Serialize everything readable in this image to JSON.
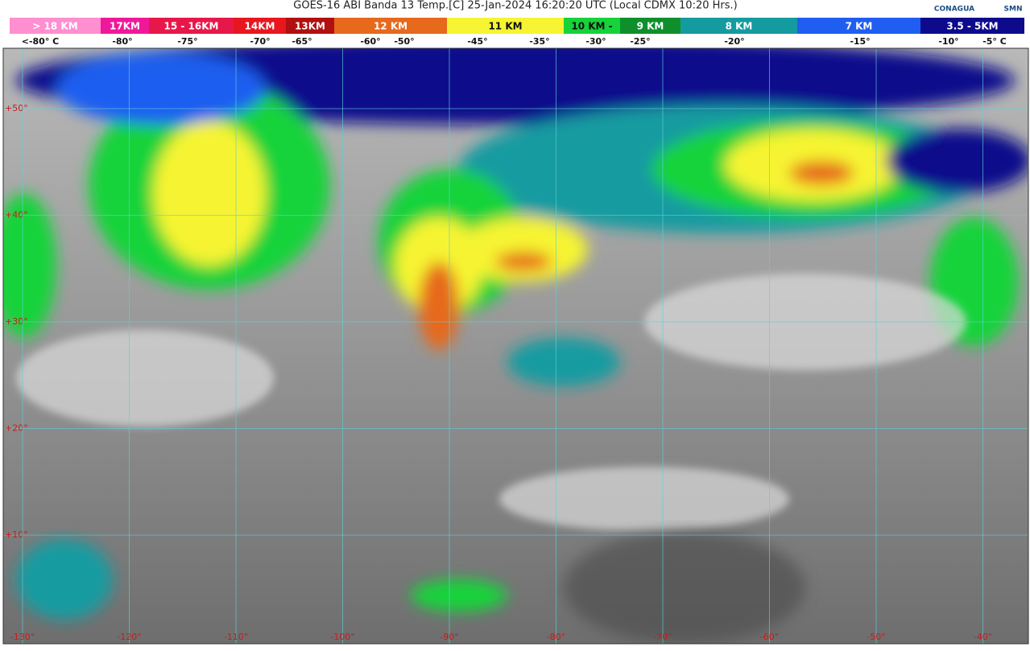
{
  "header": {
    "title": "GOES-16 ABI Banda 13 Temp.[C] 25-Jan-2024 16:20:20 UTC (Local CDMX  10:20 Hrs.)",
    "logos": [
      "CONAGUA",
      "SMN"
    ]
  },
  "legend": {
    "segments": [
      {
        "label": "> 18 KM",
        "color": "#ff8fd0"
      },
      {
        "label": "17KM",
        "color": "#f0189a"
      },
      {
        "label": "15 - 16KM",
        "color": "#e8174a"
      },
      {
        "label": "14KM",
        "color": "#e8161e"
      },
      {
        "label": "13KM",
        "color": "#b01010"
      },
      {
        "label": "12 KM",
        "color": "#e6691c"
      },
      {
        "label": "11 KM",
        "color": "#f6f433"
      },
      {
        "label": "10 KM -",
        "color": "#17d33a"
      },
      {
        "label": "9 KM",
        "color": "#0f8f2c"
      },
      {
        "label": "8 KM",
        "color": "#149ba0"
      },
      {
        "label": "7 KM",
        "color": "#1f5ef0"
      },
      {
        "label": "3.5 - 5KM",
        "color": "#0d0b8c"
      }
    ],
    "temperatures": [
      "<-80° C",
      "-80°",
      "-75°",
      "-70°",
      "-65°",
      "-60°",
      "-50°",
      "-45°",
      "-35°",
      "-30°",
      "-25°",
      "-20°",
      "-15°",
      "-10°",
      "-5° C"
    ]
  },
  "map": {
    "latitudes": [
      "+50°",
      "+40°",
      "+30°",
      "+20°",
      "+10°"
    ],
    "longitudes": [
      "-130°",
      "-120°",
      "-110°",
      "-100°",
      "-90°",
      "-80°",
      "-70°",
      "-60°",
      "-50°",
      "-40°"
    ]
  }
}
